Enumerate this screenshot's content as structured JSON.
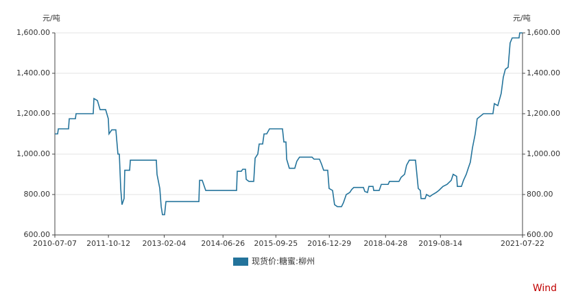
{
  "chart_data": {
    "type": "line",
    "y_unit": "元/吨",
    "y2_unit": "元/吨",
    "source": "Wind",
    "xlim": [
      "2010-07-07",
      "2021-07-22"
    ],
    "xticks": [
      "2010-07-07",
      "2011-10-12",
      "2013-02-04",
      "2014-06-26",
      "2015-09-25",
      "2016-12-29",
      "2018-04-28",
      "2019-08-14",
      "2021-07-22"
    ],
    "ylim": [
      600,
      1600
    ],
    "yticks": [
      {
        "value": 600,
        "label": "600.00"
      },
      {
        "value": 800,
        "label": "800.00"
      },
      {
        "value": 1000,
        "label": "1,000.00"
      },
      {
        "value": 1200,
        "label": "1,200.00"
      },
      {
        "value": 1400,
        "label": "1,400.00"
      },
      {
        "value": 1600,
        "label": "1,600.00"
      }
    ],
    "y2lim": [
      600,
      1600
    ],
    "y2ticks": [
      {
        "value": 600,
        "label": "600.00"
      },
      {
        "value": 800,
        "label": "800.00"
      },
      {
        "value": 1000,
        "label": "1,000.00"
      },
      {
        "value": 1200,
        "label": "1,200.00"
      },
      {
        "value": 1400,
        "label": "1,400.00"
      },
      {
        "value": 1600,
        "label": "1,600.00"
      }
    ],
    "grid": true,
    "x": [
      "2010-07-07",
      "2010-07-31",
      "2010-08-06",
      "2010-11-02",
      "2010-11-08",
      "2010-12-31",
      "2011-01-06",
      "2011-06-03",
      "2011-06-09",
      "2011-07-09",
      "2011-08-01",
      "2011-09-18",
      "2011-10-11",
      "2011-10-17",
      "2011-11-10",
      "2011-12-15",
      "2012-01-02",
      "2012-01-14",
      "2012-01-26",
      "2012-02-06",
      "2012-02-24",
      "2012-03-01",
      "2012-04-12",
      "2012-04-18",
      "2012-11-28",
      "2012-12-04",
      "2012-12-28",
      "2013-01-09",
      "2013-01-20",
      "2013-02-07",
      "2013-02-19",
      "2013-11-30",
      "2013-12-06",
      "2013-12-29",
      "2014-01-28",
      "2014-10-21",
      "2014-10-27",
      "2014-12-01",
      "2014-12-13",
      "2015-01-06",
      "2015-01-12",
      "2015-02-04",
      "2015-03-18",
      "2015-03-30",
      "2015-04-22",
      "2015-05-04",
      "2015-06-03",
      "2015-06-15",
      "2015-07-08",
      "2015-08-01",
      "2015-11-21",
      "2015-12-03",
      "2015-12-21",
      "2015-12-27",
      "2016-01-19",
      "2016-03-06",
      "2016-03-24",
      "2016-04-16",
      "2016-08-02",
      "2016-08-19",
      "2016-10-05",
      "2016-10-23",
      "2016-11-10",
      "2016-12-15",
      "2016-12-27",
      "2017-01-26",
      "2017-02-12",
      "2017-03-08",
      "2017-04-13",
      "2017-04-30",
      "2017-05-24",
      "2017-06-23",
      "2017-07-10",
      "2017-07-28",
      "2017-10-19",
      "2017-10-31",
      "2017-11-23",
      "2017-12-05",
      "2018-01-10",
      "2018-01-16",
      "2018-03-04",
      "2018-03-22",
      "2018-05-20",
      "2018-06-01",
      "2018-08-22",
      "2018-09-09",
      "2018-10-09",
      "2018-10-26",
      "2018-11-19",
      "2019-01-11",
      "2019-02-04",
      "2019-02-22",
      "2019-02-28",
      "2019-04-04",
      "2019-04-16",
      "2019-05-15",
      "2019-06-08",
      "2019-07-08",
      "2019-07-31",
      "2019-09-05",
      "2019-10-10",
      "2019-11-15",
      "2019-12-02",
      "2020-01-01",
      "2020-01-07",
      "2020-02-11",
      "2020-02-29",
      "2020-03-24",
      "2020-04-10",
      "2020-04-28",
      "2020-05-16",
      "2020-06-09",
      "2020-06-26",
      "2020-08-19",
      "2020-11-09",
      "2020-11-21",
      "2020-12-21",
      "2021-01-19",
      "2021-02-06",
      "2021-02-24",
      "2021-03-20",
      "2021-04-06",
      "2021-04-24",
      "2021-06-22",
      "2021-06-28",
      "2021-07-22"
    ],
    "series": [
      {
        "name": "现货价:糖蜜:柳州",
        "color": "#23739b",
        "values": [
          1100,
          1100,
          1125,
          1125,
          1175,
          1175,
          1200,
          1200,
          1275,
          1265,
          1220,
          1220,
          1175,
          1100,
          1120,
          1120,
          1000,
          1000,
          830,
          750,
          780,
          920,
          920,
          970,
          970,
          900,
          830,
          740,
          700,
          700,
          765,
          765,
          870,
          870,
          820,
          820,
          915,
          915,
          925,
          925,
          875,
          865,
          865,
          980,
          1000,
          1050,
          1050,
          1100,
          1100,
          1125,
          1125,
          1060,
          1060,
          975,
          930,
          930,
          965,
          985,
          985,
          975,
          975,
          950,
          920,
          920,
          830,
          820,
          750,
          740,
          740,
          760,
          800,
          810,
          825,
          835,
          835,
          815,
          810,
          840,
          840,
          820,
          820,
          850,
          850,
          865,
          865,
          885,
          900,
          945,
          970,
          970,
          830,
          820,
          780,
          780,
          800,
          790,
          800,
          810,
          820,
          840,
          850,
          870,
          900,
          890,
          840,
          840,
          870,
          900,
          930,
          960,
          1030,
          1100,
          1175,
          1200,
          1200,
          1250,
          1240,
          1300,
          1380,
          1420,
          1430,
          1550,
          1575,
          1575,
          1600,
          1600
        ]
      }
    ]
  }
}
